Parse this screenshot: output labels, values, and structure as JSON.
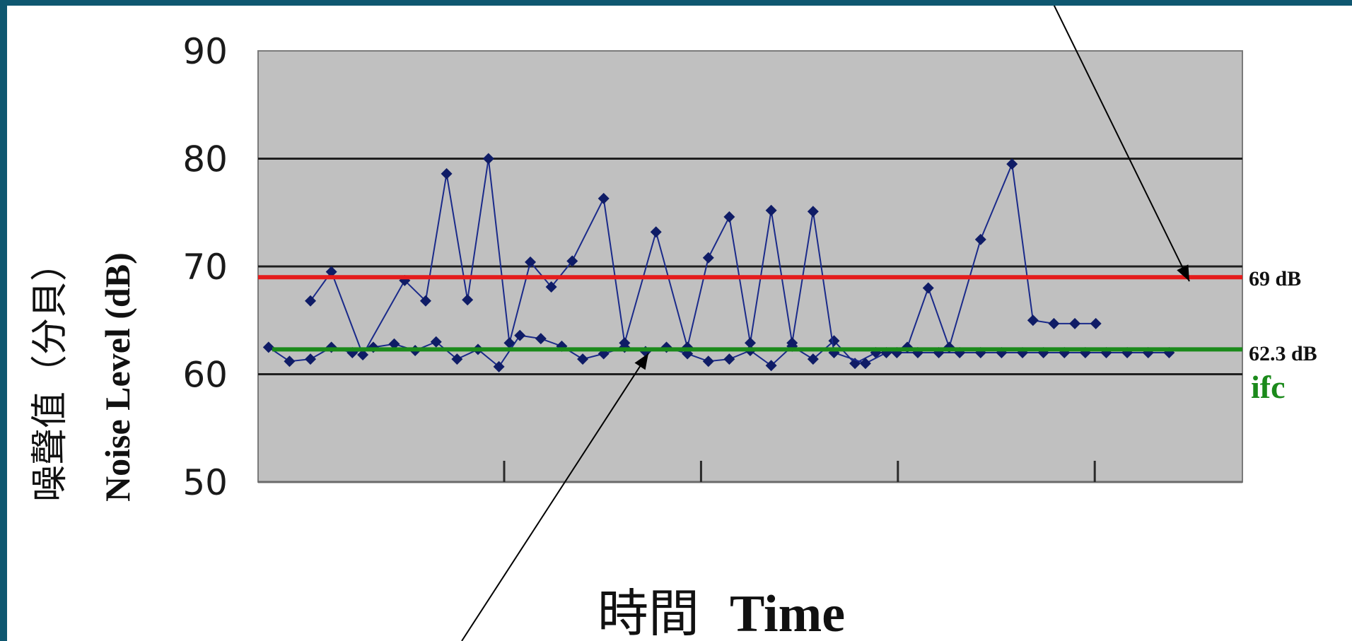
{
  "frame": {
    "border_color": "#0f5770"
  },
  "chart_data": {
    "type": "line",
    "title": "",
    "ylabel_cn": "噪聲值（分貝）",
    "ylabel_en": "Noise Level (dB)",
    "xlabel_cn": "時間",
    "xlabel_en": "Time",
    "ylim": [
      50,
      90
    ],
    "yticks": [
      "50",
      "60",
      "70",
      "80",
      "90"
    ],
    "grid": true,
    "plot_background": "#c0c0c0",
    "series_color": "#1a2a8a",
    "series": [
      {
        "x": [
          1,
          2,
          3,
          4,
          5,
          6,
          7,
          8,
          9,
          10,
          11,
          12,
          13,
          14,
          15,
          16,
          17,
          18,
          19,
          20,
          21,
          22,
          23,
          24,
          25,
          26,
          27,
          28,
          29,
          30,
          31,
          32,
          33,
          34,
          35,
          36,
          37,
          38,
          39,
          40,
          41,
          42,
          43,
          44
        ],
        "values": [
          62.5,
          61.2,
          61.4,
          62.5,
          62,
          62.5,
          62.8,
          62.2,
          63,
          61.4,
          62.3,
          60.7,
          63.6,
          63.3,
          62.6,
          61.4,
          61.9,
          62.5,
          62.1,
          62.5,
          61.9,
          61.2,
          61.4,
          62.2,
          60.8,
          62.6,
          61.4,
          63.1,
          61,
          62,
          62,
          62,
          62,
          62,
          62,
          62,
          62,
          62,
          62,
          62,
          62,
          62,
          62,
          62
        ]
      },
      {
        "x": [
          3,
          4,
          5.5,
          7.5,
          8.5,
          9.5,
          10.5,
          11.5,
          12.5,
          13.5,
          14.5,
          15.5,
          17,
          18,
          19.5,
          21,
          22,
          23,
          24,
          25,
          26,
          27,
          28,
          29.5,
          30.5,
          31.5,
          32.5,
          33.5,
          35,
          36.5,
          37.5,
          38.5,
          39.5,
          40.5
        ],
        "values": [
          66.8,
          69.5,
          61.8,
          68.7,
          66.8,
          78.6,
          66.9,
          80,
          62.9,
          70.4,
          68.1,
          70.5,
          76.3,
          62.9,
          73.2,
          62.5,
          70.8,
          74.6,
          62.9,
          75.2,
          62.9,
          75.1,
          62,
          61,
          62,
          62.5,
          68,
          62.5,
          72.5,
          79.5,
          65,
          64.7,
          64.7,
          64.7
        ]
      }
    ],
    "reference_lines": [
      {
        "value": 69,
        "label": "69 dB",
        "color": "#e51c1c"
      },
      {
        "value": 62.3,
        "label": "62.3 dB",
        "color": "#1b8a1b"
      }
    ],
    "annotation": {
      "text": "ifc",
      "color": "#1b8a1b"
    }
  }
}
